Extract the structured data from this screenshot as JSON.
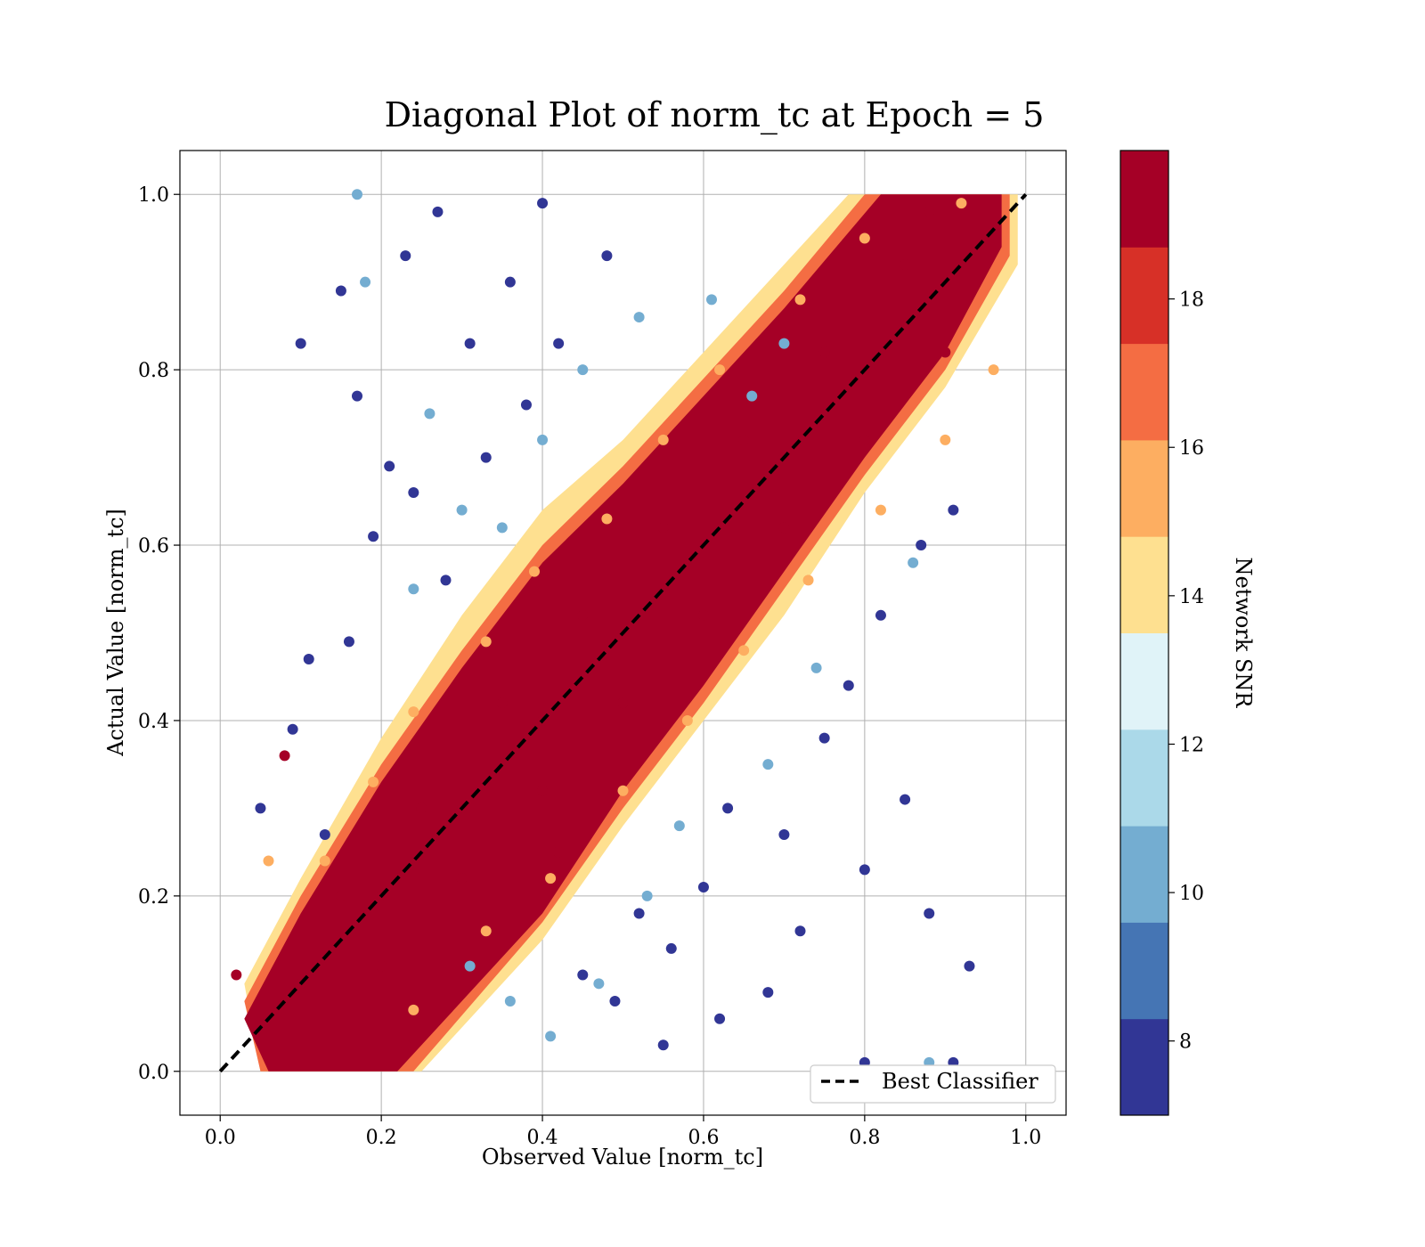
{
  "chart_data": {
    "type": "scatter",
    "title": "Diagonal Plot of norm_tc at Epoch = 5",
    "xlabel": "Observed Value [norm_tc]",
    "ylabel": "Actual Value [norm_tc]",
    "xlim": [
      -0.05,
      1.05
    ],
    "ylim": [
      -0.05,
      1.05
    ],
    "x_ticks": [
      "0.0",
      "0.2",
      "0.4",
      "0.6",
      "0.8",
      "1.0"
    ],
    "y_ticks": [
      "0.0",
      "0.2",
      "0.4",
      "0.6",
      "0.8",
      "1.0"
    ],
    "grid": true,
    "legend": {
      "position": "bottom-right",
      "entries": [
        "Best Classifier"
      ]
    },
    "reference_line": {
      "label": "Best Classifier",
      "x": [
        0.0,
        1.0
      ],
      "y": [
        0.0,
        1.0
      ],
      "style": "dashed",
      "color": "#000000"
    },
    "colorbar": {
      "label": "Network SNR",
      "range": [
        7,
        20
      ],
      "ticks": [
        "8",
        "10",
        "12",
        "14",
        "16",
        "18"
      ],
      "colors": [
        "#313695",
        "#4575b4",
        "#74add1",
        "#abd9e9",
        "#e0f3f8",
        "#fee090",
        "#fdae61",
        "#f46d43",
        "#d73027",
        "#a50026"
      ]
    },
    "series": [
      {
        "snr_bin": "high",
        "color": "#a50026",
        "points": [
          [
            0.1,
            0.1
          ],
          [
            0.2,
            0.2
          ],
          [
            0.3,
            0.3
          ],
          [
            0.4,
            0.4
          ],
          [
            0.5,
            0.5
          ],
          [
            0.6,
            0.6
          ],
          [
            0.7,
            0.7
          ],
          [
            0.8,
            0.8
          ],
          [
            0.9,
            0.9
          ],
          [
            0.15,
            0.2
          ],
          [
            0.25,
            0.3
          ],
          [
            0.35,
            0.42
          ],
          [
            0.45,
            0.52
          ],
          [
            0.55,
            0.62
          ],
          [
            0.65,
            0.72
          ],
          [
            0.75,
            0.82
          ],
          [
            0.85,
            0.92
          ],
          [
            0.2,
            0.12
          ],
          [
            0.3,
            0.22
          ],
          [
            0.4,
            0.32
          ],
          [
            0.5,
            0.42
          ],
          [
            0.6,
            0.52
          ],
          [
            0.7,
            0.62
          ],
          [
            0.8,
            0.72
          ],
          [
            0.9,
            0.82
          ],
          [
            0.08,
            0.36
          ],
          [
            0.02,
            0.11
          ],
          [
            0.23,
            0.03
          ],
          [
            0.42,
            0.25
          ],
          [
            0.88,
            0.98
          ]
        ]
      },
      {
        "snr_bin": "mid",
        "color": "#fdae61",
        "points": [
          [
            0.13,
            0.24
          ],
          [
            0.19,
            0.33
          ],
          [
            0.24,
            0.41
          ],
          [
            0.33,
            0.49
          ],
          [
            0.39,
            0.57
          ],
          [
            0.48,
            0.63
          ],
          [
            0.55,
            0.72
          ],
          [
            0.62,
            0.8
          ],
          [
            0.72,
            0.88
          ],
          [
            0.8,
            0.95
          ],
          [
            0.24,
            0.07
          ],
          [
            0.33,
            0.16
          ],
          [
            0.41,
            0.22
          ],
          [
            0.5,
            0.32
          ],
          [
            0.58,
            0.4
          ],
          [
            0.65,
            0.48
          ],
          [
            0.73,
            0.56
          ],
          [
            0.82,
            0.64
          ],
          [
            0.9,
            0.72
          ],
          [
            0.96,
            0.8
          ],
          [
            0.06,
            0.24
          ],
          [
            0.92,
            0.99
          ]
        ]
      },
      {
        "snr_bin": "low",
        "color": "#313695",
        "points": [
          [
            0.1,
            0.83
          ],
          [
            0.15,
            0.89
          ],
          [
            0.17,
            0.77
          ],
          [
            0.23,
            0.93
          ],
          [
            0.27,
            0.98
          ],
          [
            0.31,
            0.83
          ],
          [
            0.36,
            0.9
          ],
          [
            0.4,
            0.99
          ],
          [
            0.42,
            0.83
          ],
          [
            0.48,
            0.93
          ],
          [
            0.19,
            0.61
          ],
          [
            0.21,
            0.69
          ],
          [
            0.24,
            0.66
          ],
          [
            0.28,
            0.56
          ],
          [
            0.33,
            0.7
          ],
          [
            0.38,
            0.76
          ],
          [
            0.11,
            0.47
          ],
          [
            0.09,
            0.39
          ],
          [
            0.16,
            0.49
          ],
          [
            0.13,
            0.27
          ],
          [
            0.05,
            0.3
          ],
          [
            0.55,
            0.03
          ],
          [
            0.62,
            0.06
          ],
          [
            0.68,
            0.09
          ],
          [
            0.72,
            0.16
          ],
          [
            0.8,
            0.23
          ],
          [
            0.85,
            0.31
          ],
          [
            0.88,
            0.18
          ],
          [
            0.93,
            0.12
          ],
          [
            0.91,
            0.01
          ],
          [
            0.8,
            0.01
          ],
          [
            0.7,
            0.27
          ],
          [
            0.75,
            0.38
          ],
          [
            0.78,
            0.44
          ],
          [
            0.82,
            0.52
          ],
          [
            0.87,
            0.6
          ],
          [
            0.91,
            0.64
          ],
          [
            0.56,
            0.14
          ],
          [
            0.6,
            0.21
          ],
          [
            0.49,
            0.08
          ],
          [
            0.45,
            0.11
          ],
          [
            0.63,
            0.3
          ],
          [
            0.52,
            0.18
          ]
        ]
      },
      {
        "snr_bin": "low-mid",
        "color": "#74add1",
        "points": [
          [
            0.17,
            1.0
          ],
          [
            0.18,
            0.9
          ],
          [
            0.26,
            0.75
          ],
          [
            0.3,
            0.64
          ],
          [
            0.35,
            0.62
          ],
          [
            0.4,
            0.72
          ],
          [
            0.45,
            0.8
          ],
          [
            0.52,
            0.86
          ],
          [
            0.61,
            0.88
          ],
          [
            0.66,
            0.77
          ],
          [
            0.7,
            0.83
          ],
          [
            0.31,
            0.12
          ],
          [
            0.36,
            0.08
          ],
          [
            0.41,
            0.04
          ],
          [
            0.47,
            0.1
          ],
          [
            0.53,
            0.2
          ],
          [
            0.57,
            0.28
          ],
          [
            0.68,
            0.35
          ],
          [
            0.74,
            0.46
          ],
          [
            0.86,
            0.58
          ],
          [
            0.88,
            0.01
          ],
          [
            0.24,
            0.55
          ]
        ]
      }
    ]
  }
}
